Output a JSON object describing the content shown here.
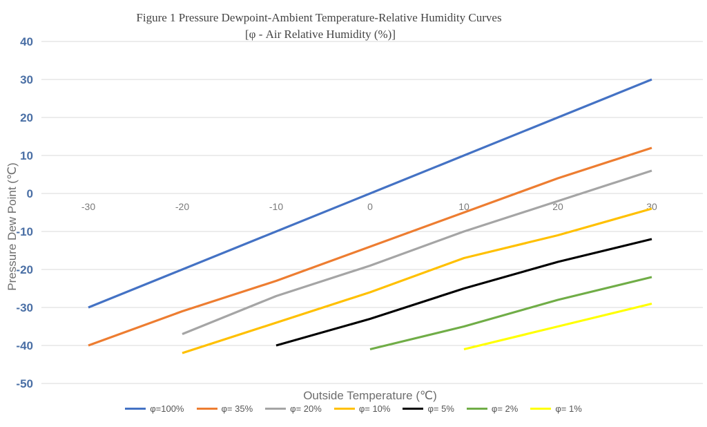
{
  "chart_data": {
    "type": "line",
    "title": "Figure 1 Pressure Dewpoint-Ambient Temperature-Relative Humidity Curves",
    "subtitle": "[φ - Air Relative Humidity (%)]",
    "xlabel": "Outside Temperature (℃)",
    "ylabel": "Pressure Dew Point (℃)",
    "xlim": [
      -35,
      35
    ],
    "ylim": [
      -50,
      40
    ],
    "x_ticks": [
      "-30",
      "-20",
      "-10",
      "0",
      "10",
      "20",
      "30"
    ],
    "y_ticks": [
      "40",
      "30",
      "20",
      "10",
      "0",
      "-10",
      "-20",
      "-30",
      "-40",
      "-50"
    ],
    "grid": true,
    "legend_position": "bottom",
    "series": [
      {
        "name": "φ=100%",
        "color": "#4472c4",
        "points": [
          [
            -30,
            -30
          ],
          [
            -20,
            -20
          ],
          [
            -10,
            -10
          ],
          [
            0,
            0
          ],
          [
            10,
            10
          ],
          [
            20,
            20
          ],
          [
            30,
            30
          ]
        ]
      },
      {
        "name": "φ= 35%",
        "color": "#ed7d31",
        "points": [
          [
            -30,
            -40
          ],
          [
            -20,
            -31
          ],
          [
            -10,
            -23
          ],
          [
            0,
            -14
          ],
          [
            10,
            -5
          ],
          [
            20,
            4
          ],
          [
            30,
            12
          ]
        ]
      },
      {
        "name": "φ= 20%",
        "color": "#a5a5a5",
        "points": [
          [
            -20,
            -37
          ],
          [
            -10,
            -27
          ],
          [
            0,
            -19
          ],
          [
            10,
            -10
          ],
          [
            20,
            -2
          ],
          [
            30,
            6
          ]
        ]
      },
      {
        "name": "φ= 10%",
        "color": "#ffc000",
        "points": [
          [
            -20,
            -42
          ],
          [
            0,
            -26
          ],
          [
            10,
            -17
          ],
          [
            20,
            -11
          ],
          [
            30,
            -4
          ]
        ]
      },
      {
        "name": "φ= 5%",
        "color": "#000000",
        "points": [
          [
            -10,
            -40
          ],
          [
            0,
            -33
          ],
          [
            10,
            -25
          ],
          [
            20,
            -18
          ],
          [
            30,
            -12
          ]
        ]
      },
      {
        "name": "φ= 2%",
        "color": "#70ad47",
        "points": [
          [
            0,
            -41
          ],
          [
            10,
            -35
          ],
          [
            20,
            -28
          ],
          [
            30,
            -22
          ]
        ]
      },
      {
        "name": "φ= 1%",
        "color": "#ffff00",
        "points": [
          [
            10,
            -41
          ],
          [
            20,
            -35
          ],
          [
            30,
            -29
          ]
        ]
      }
    ]
  }
}
